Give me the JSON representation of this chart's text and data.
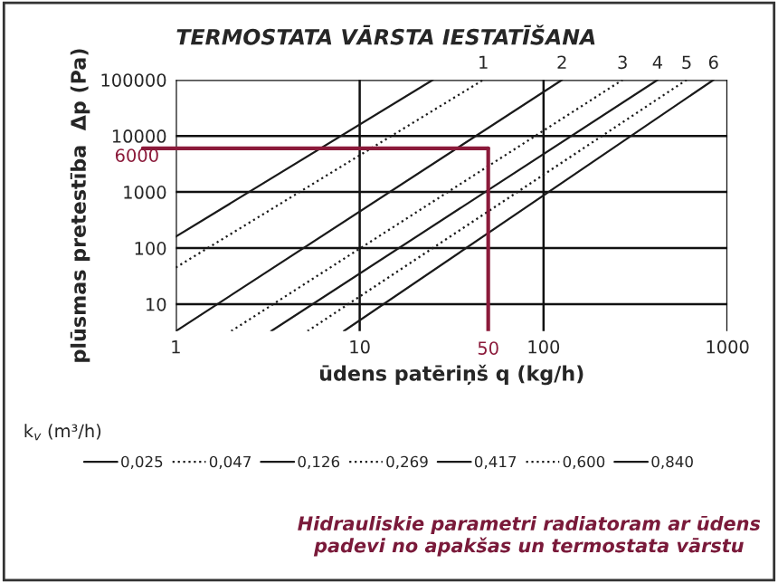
{
  "chart_data": {
    "type": "line",
    "title": "TERMOSTATA VĀRSTA IESTATĪŠANA",
    "xlabel": "ūdens patēriņš q (kg/h)",
    "ylabel": "plūsmas pretestība  Δp (Pa)",
    "legend_title": "k$_{v}$ (m³/h)",
    "log": "xy",
    "grid": true,
    "legend": "bottom",
    "xlim": [
      1,
      1000
    ],
    "xticks": [
      1,
      10,
      100,
      1000
    ],
    "ylim": [
      3.3,
      100000
    ],
    "yticks": [
      10,
      100,
      1000,
      10000,
      100000
    ],
    "series": [
      {
        "name": "0,025",
        "color": "#1a1a1a",
        "line_style": "solid",
        "x": [
          1,
          25
        ],
        "values": [
          160,
          100000
        ]
      },
      {
        "name": "0,047",
        "color": "#1a1a1a",
        "line_style": "dotted",
        "x": [
          1,
          47
        ],
        "values": [
          45,
          100000
        ]
      },
      {
        "name": "0,126",
        "color": "#1a1a1a",
        "line_style": "solid",
        "x": [
          1,
          126
        ],
        "values": [
          3.3,
          100000
        ]
      },
      {
        "name": "0,269",
        "color": "#1a1a1a",
        "line_style": "dotted",
        "x": [
          2,
          269
        ],
        "values": [
          3.3,
          100000
        ]
      },
      {
        "name": "0,417",
        "color": "#1a1a1a",
        "line_style": "solid",
        "x": [
          3.3,
          417
        ],
        "values": [
          3.3,
          100000
        ]
      },
      {
        "name": "0,600",
        "color": "#1a1a1a",
        "line_style": "dotted",
        "x": [
          5.2,
          600
        ],
        "values": [
          3.3,
          100000
        ]
      },
      {
        "name": "0,840",
        "color": "#1a1a1a",
        "line_style": "solid",
        "x": [
          8.2,
          840
        ],
        "values": [
          3.3,
          100000
        ]
      }
    ],
    "ref_lines": [
      {
        "axis": "y",
        "value": 6000,
        "label": "6000",
        "color": "#8b1a3a"
      },
      {
        "axis": "x",
        "value": 50,
        "label": "50",
        "color": "#8b1a3a"
      }
    ],
    "annotations": [
      {
        "text": "1",
        "x": 47,
        "y": 100000
      },
      {
        "text": "2",
        "x": 126,
        "y": 100000
      },
      {
        "text": "3",
        "x": 269,
        "y": 100000
      },
      {
        "text": "4",
        "x": 417,
        "y": 100000
      },
      {
        "text": "5",
        "x": 600,
        "y": 100000
      },
      {
        "text": "6",
        "x": 840,
        "y": 100000
      },
      "Hidrauliskie parametri radiatoram ar ūdens padevi no apakšas un termostata vārstu"
    ]
  }
}
